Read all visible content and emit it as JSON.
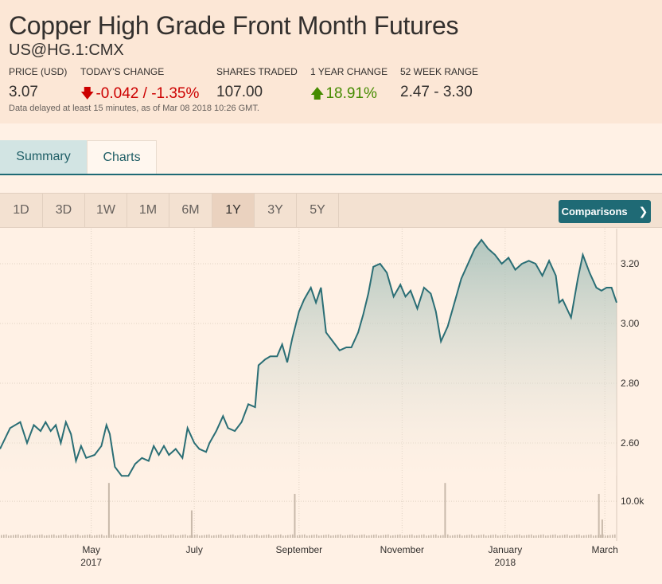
{
  "header": {
    "title": "Copper High Grade Front Month Futures",
    "symbol": "US@HG.1:CMX",
    "stats": {
      "price_label": "PRICE (USD)",
      "price_value": "3.07",
      "change_label": "TODAY'S CHANGE",
      "change_value": "-0.042 / -1.35%",
      "shares_label": "SHARES TRADED",
      "shares_value": "107.00",
      "year_label": "1 YEAR CHANGE",
      "year_value": "18.91%",
      "range_label": "52 WEEK RANGE",
      "range_value": "2.47 - 3.30"
    },
    "delayed_note": "Data delayed at least 15 minutes, as of Mar 08 2018 10:26 GMT."
  },
  "tabs": [
    {
      "label": "Summary",
      "active": true
    },
    {
      "label": "Charts",
      "active": false
    }
  ],
  "ranges": [
    {
      "label": "1D"
    },
    {
      "label": "3D"
    },
    {
      "label": "1W"
    },
    {
      "label": "1M"
    },
    {
      "label": "6M"
    },
    {
      "label": "1Y",
      "active": true
    },
    {
      "label": "3Y"
    },
    {
      "label": "5Y"
    }
  ],
  "comparisons_label": "Comparisons",
  "colors": {
    "accent": "#1f6a75",
    "down": "#cc0000",
    "up": "#458b00",
    "line": "#2a6e75",
    "volume": "#c8b9aa"
  },
  "chart_data": {
    "type": "area",
    "price_ylim": [
      2.47,
      3.3
    ],
    "price_ticks": [
      {
        "label": "3.20",
        "value": 3.2
      },
      {
        "label": "3.00",
        "value": 3.0
      },
      {
        "label": "2.80",
        "value": 2.8
      },
      {
        "label": "2.60",
        "value": 2.6
      }
    ],
    "volume_ticks": [
      {
        "label": "10.0k",
        "value": 10000
      }
    ],
    "volume_max": 17000,
    "x_labels": [
      {
        "label": "May",
        "year": "2017",
        "date": "2017-05-01"
      },
      {
        "label": "July",
        "year": "",
        "date": "2017-07-01"
      },
      {
        "label": "September",
        "year": "",
        "date": "2017-09-01"
      },
      {
        "label": "November",
        "year": "",
        "date": "2017-11-01"
      },
      {
        "label": "January",
        "year": "2018",
        "date": "2018-01-01"
      },
      {
        "label": "March",
        "year": "",
        "date": "2018-03-01"
      }
    ],
    "gridlines": true,
    "price_series": [
      [
        "2017-03-08",
        2.58
      ],
      [
        "2017-03-14",
        2.65
      ],
      [
        "2017-03-20",
        2.67
      ],
      [
        "2017-03-24",
        2.6
      ],
      [
        "2017-03-28",
        2.66
      ],
      [
        "2017-04-01",
        2.64
      ],
      [
        "2017-04-04",
        2.67
      ],
      [
        "2017-04-07",
        2.64
      ],
      [
        "2017-04-10",
        2.66
      ],
      [
        "2017-04-13",
        2.6
      ],
      [
        "2017-04-16",
        2.67
      ],
      [
        "2017-04-19",
        2.63
      ],
      [
        "2017-04-22",
        2.54
      ],
      [
        "2017-04-25",
        2.59
      ],
      [
        "2017-04-28",
        2.55
      ],
      [
        "2017-05-03",
        2.56
      ],
      [
        "2017-05-07",
        2.59
      ],
      [
        "2017-05-10",
        2.66
      ],
      [
        "2017-05-12",
        2.63
      ],
      [
        "2017-05-15",
        2.52
      ],
      [
        "2017-05-19",
        2.49
      ],
      [
        "2017-05-23",
        2.49
      ],
      [
        "2017-05-27",
        2.53
      ],
      [
        "2017-05-31",
        2.55
      ],
      [
        "2017-06-04",
        2.54
      ],
      [
        "2017-06-07",
        2.59
      ],
      [
        "2017-06-10",
        2.56
      ],
      [
        "2017-06-13",
        2.59
      ],
      [
        "2017-06-16",
        2.56
      ],
      [
        "2017-06-20",
        2.58
      ],
      [
        "2017-06-24",
        2.55
      ],
      [
        "2017-06-27",
        2.65
      ],
      [
        "2017-07-01",
        2.6
      ],
      [
        "2017-07-04",
        2.58
      ],
      [
        "2017-07-08",
        2.57
      ],
      [
        "2017-07-10",
        2.6
      ],
      [
        "2017-07-14",
        2.64
      ],
      [
        "2017-07-18",
        2.69
      ],
      [
        "2017-07-21",
        2.65
      ],
      [
        "2017-07-25",
        2.64
      ],
      [
        "2017-07-29",
        2.67
      ],
      [
        "2017-08-02",
        2.73
      ],
      [
        "2017-08-06",
        2.72
      ],
      [
        "2017-08-08",
        2.86
      ],
      [
        "2017-08-12",
        2.88
      ],
      [
        "2017-08-15",
        2.89
      ],
      [
        "2017-08-19",
        2.89
      ],
      [
        "2017-08-22",
        2.93
      ],
      [
        "2017-08-25",
        2.87
      ],
      [
        "2017-08-28",
        2.95
      ],
      [
        "2017-09-01",
        3.04
      ],
      [
        "2017-09-04",
        3.08
      ],
      [
        "2017-09-08",
        3.12
      ],
      [
        "2017-09-11",
        3.07
      ],
      [
        "2017-09-14",
        3.12
      ],
      [
        "2017-09-17",
        2.97
      ],
      [
        "2017-09-21",
        2.94
      ],
      [
        "2017-09-25",
        2.91
      ],
      [
        "2017-09-29",
        2.92
      ],
      [
        "2017-10-02",
        2.92
      ],
      [
        "2017-10-06",
        2.97
      ],
      [
        "2017-10-09",
        3.03
      ],
      [
        "2017-10-12",
        3.1
      ],
      [
        "2017-10-15",
        3.19
      ],
      [
        "2017-10-19",
        3.2
      ],
      [
        "2017-10-23",
        3.17
      ],
      [
        "2017-10-27",
        3.09
      ],
      [
        "2017-10-31",
        3.13
      ],
      [
        "2017-11-03",
        3.09
      ],
      [
        "2017-11-06",
        3.11
      ],
      [
        "2017-11-10",
        3.05
      ],
      [
        "2017-11-14",
        3.12
      ],
      [
        "2017-11-18",
        3.1
      ],
      [
        "2017-11-21",
        3.04
      ],
      [
        "2017-11-24",
        2.94
      ],
      [
        "2017-11-28",
        2.99
      ],
      [
        "2017-12-02",
        3.07
      ],
      [
        "2017-12-06",
        3.15
      ],
      [
        "2017-12-10",
        3.2
      ],
      [
        "2017-12-14",
        3.25
      ],
      [
        "2017-12-18",
        3.28
      ],
      [
        "2017-12-22",
        3.25
      ],
      [
        "2017-12-26",
        3.23
      ],
      [
        "2017-12-30",
        3.2
      ],
      [
        "2018-01-03",
        3.22
      ],
      [
        "2018-01-07",
        3.18
      ],
      [
        "2018-01-11",
        3.2
      ],
      [
        "2018-01-15",
        3.21
      ],
      [
        "2018-01-19",
        3.2
      ],
      [
        "2018-01-23",
        3.16
      ],
      [
        "2018-01-27",
        3.21
      ],
      [
        "2018-01-31",
        3.16
      ],
      [
        "2018-02-02",
        3.07
      ],
      [
        "2018-02-04",
        3.08
      ],
      [
        "2018-02-09",
        3.02
      ],
      [
        "2018-02-13",
        3.15
      ],
      [
        "2018-02-16",
        3.23
      ],
      [
        "2018-02-20",
        3.17
      ],
      [
        "2018-02-24",
        3.12
      ],
      [
        "2018-02-27",
        3.11
      ],
      [
        "2018-03-02",
        3.12
      ],
      [
        "2018-03-05",
        3.12
      ],
      [
        "2018-03-08",
        3.07
      ]
    ],
    "volume_spikes": [
      [
        "2017-05-11",
        15000
      ],
      [
        "2017-06-29",
        7500
      ],
      [
        "2017-08-29",
        12000
      ],
      [
        "2017-11-26",
        15000
      ],
      [
        "2018-02-25",
        12000
      ],
      [
        "2018-02-27",
        5000
      ]
    ],
    "volume_baseline": 600
  }
}
